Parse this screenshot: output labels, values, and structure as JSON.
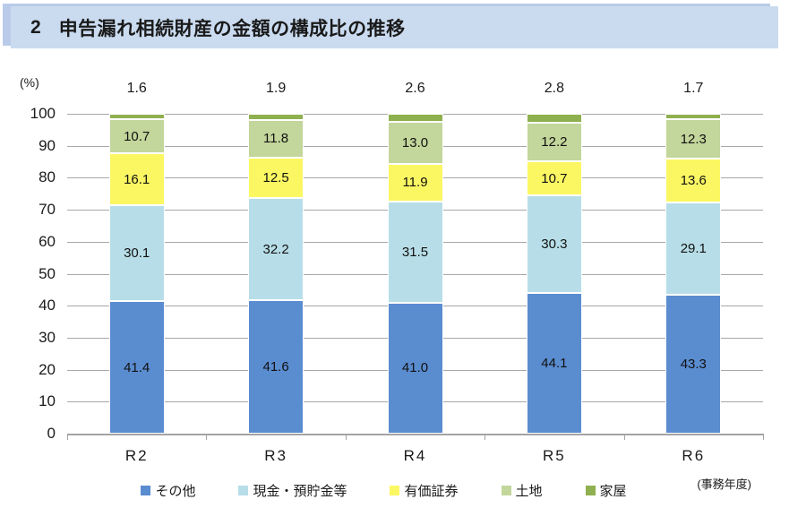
{
  "header": {
    "number": "2",
    "title": "申告漏れ相続財産の金額の構成比の推移"
  },
  "chart_data": {
    "type": "bar",
    "stacked": true,
    "title": "申告漏れ相続財産の金額の構成比の推移",
    "categories": [
      "R2",
      "R3",
      "R4",
      "R5",
      "R6"
    ],
    "series": [
      {
        "name": "その他",
        "color": "#5A8CD0",
        "values": [
          41.4,
          41.6,
          41.0,
          44.1,
          43.3
        ],
        "label_position": "inside"
      },
      {
        "name": "現金・預貯金等",
        "color": "#B7DEE8",
        "values": [
          30.1,
          32.2,
          31.5,
          30.3,
          29.1
        ],
        "label_position": "inside"
      },
      {
        "name": "有価証券",
        "color": "#FBF763",
        "values": [
          16.1,
          12.5,
          11.9,
          10.7,
          13.6
        ],
        "label_position": "inside"
      },
      {
        "name": "土地",
        "color": "#C3D69B",
        "values": [
          10.7,
          11.8,
          13.0,
          12.2,
          12.3
        ],
        "label_position": "inside"
      },
      {
        "name": "家屋",
        "color": "#8FB04E",
        "values": [
          1.6,
          1.9,
          2.6,
          2.8,
          1.7
        ],
        "label_position": "above"
      }
    ],
    "ylabel": "(%)",
    "ylim": [
      0,
      100
    ],
    "y_step": 10,
    "grid": true,
    "legend_position": "bottom",
    "x_axis_note": "(事務年度)"
  }
}
